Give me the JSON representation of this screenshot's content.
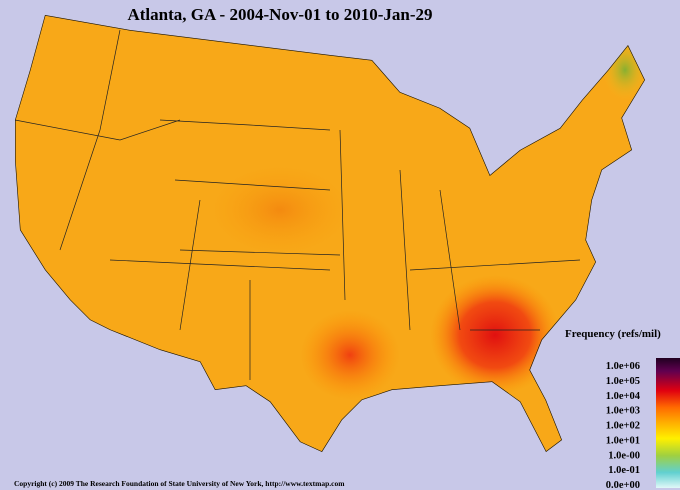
{
  "title": "Atlanta, GA - 2004-Nov-01 to 2010-Jan-29",
  "legend": {
    "title": "Frequency (refs/mil)",
    "labels": [
      "1.0e+06",
      "1.0e+05",
      "1.0e+04",
      "1.0e+03",
      "1.0e+02",
      "1.0e+01",
      "1.0e-00",
      "1.0e-01",
      "0.0e+00"
    ]
  },
  "footer": "Copyright (c) 2009 The Research Foundation of State University of New York, http://www.textmap.com"
}
